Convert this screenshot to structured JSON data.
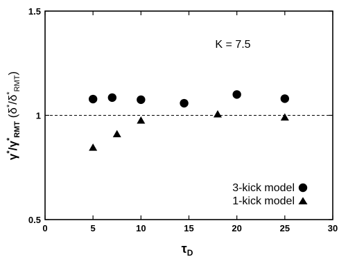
{
  "chart_data": {
    "type": "scatter",
    "xlabel": {
      "main": "τ",
      "sub": "D"
    },
    "ylabel": {
      "g1": "γ",
      "g1sup": "*",
      "slash1": "/",
      "g2": "γ",
      "g2sup": "*",
      "g2sub": "RMT",
      "paren_open": " (",
      "d1": "δ",
      "d1sup": "*",
      "slash2": "/",
      "d2": "δ",
      "d2sup": "*",
      "d2sub": "RMT",
      "paren_close": ")"
    },
    "xlim": [
      0,
      30
    ],
    "ylim": [
      0.5,
      1.5
    ],
    "xticks": [
      "0",
      "5",
      "10",
      "15",
      "20",
      "25",
      "30"
    ],
    "yticks": [
      {
        "value": 0.5,
        "label": "0.5"
      },
      {
        "value": 1.0,
        "label": "1"
      },
      {
        "value": 1.5,
        "label": "1.5"
      }
    ],
    "reference_line": {
      "y": 1.0,
      "style": "dashed"
    },
    "annotation": "K = 7.5",
    "legend_position": "bottom-right",
    "series": [
      {
        "name": "3-kick model",
        "marker": "circle",
        "points": [
          {
            "x": 5,
            "y": 1.078
          },
          {
            "x": 7,
            "y": 1.085
          },
          {
            "x": 10,
            "y": 1.075
          },
          {
            "x": 14.5,
            "y": 1.058
          },
          {
            "x": 20,
            "y": 1.1
          },
          {
            "x": 25,
            "y": 1.08
          }
        ]
      },
      {
        "name": "1-kick model",
        "marker": "triangle",
        "points": [
          {
            "x": 5,
            "y": 0.845
          },
          {
            "x": 7.5,
            "y": 0.91
          },
          {
            "x": 10,
            "y": 0.975
          },
          {
            "x": 18,
            "y": 1.005
          },
          {
            "x": 25,
            "y": 0.99
          }
        ]
      }
    ]
  }
}
